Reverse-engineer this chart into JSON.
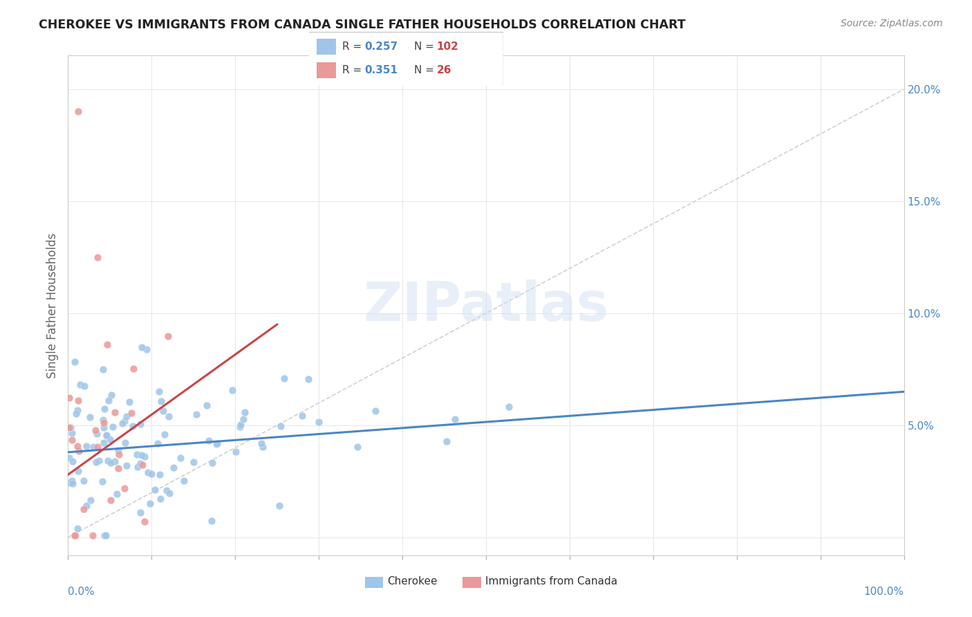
{
  "title": "CHEROKEE VS IMMIGRANTS FROM CANADA SINGLE FATHER HOUSEHOLDS CORRELATION CHART",
  "source": "Source: ZipAtlas.com",
  "ylabel": "Single Father Households",
  "xlim": [
    0,
    100
  ],
  "ylim": [
    -0.008,
    0.215
  ],
  "yticks": [
    0.0,
    0.05,
    0.1,
    0.15,
    0.2
  ],
  "ytick_labels": [
    "",
    "5.0%",
    "10.0%",
    "15.0%",
    "20.0%"
  ],
  "watermark": "ZIPatlas",
  "blue_color": "#9fc5e8",
  "pink_color": "#ea9999",
  "blue_line_color": "#4a86c8",
  "pink_line_color": "#cc4444",
  "ref_line_color": "#cccccc",
  "legend_R1": "0.257",
  "legend_N1": "102",
  "legend_R2": "0.351",
  "legend_N2": "26",
  "blue_trend_x": [
    0,
    100
  ],
  "blue_trend_y": [
    0.038,
    0.065
  ],
  "pink_trend_x": [
    0,
    25
  ],
  "pink_trend_y": [
    0.028,
    0.095
  ],
  "diag_line_x": [
    0,
    100
  ],
  "diag_line_y": [
    0,
    0.2
  ]
}
